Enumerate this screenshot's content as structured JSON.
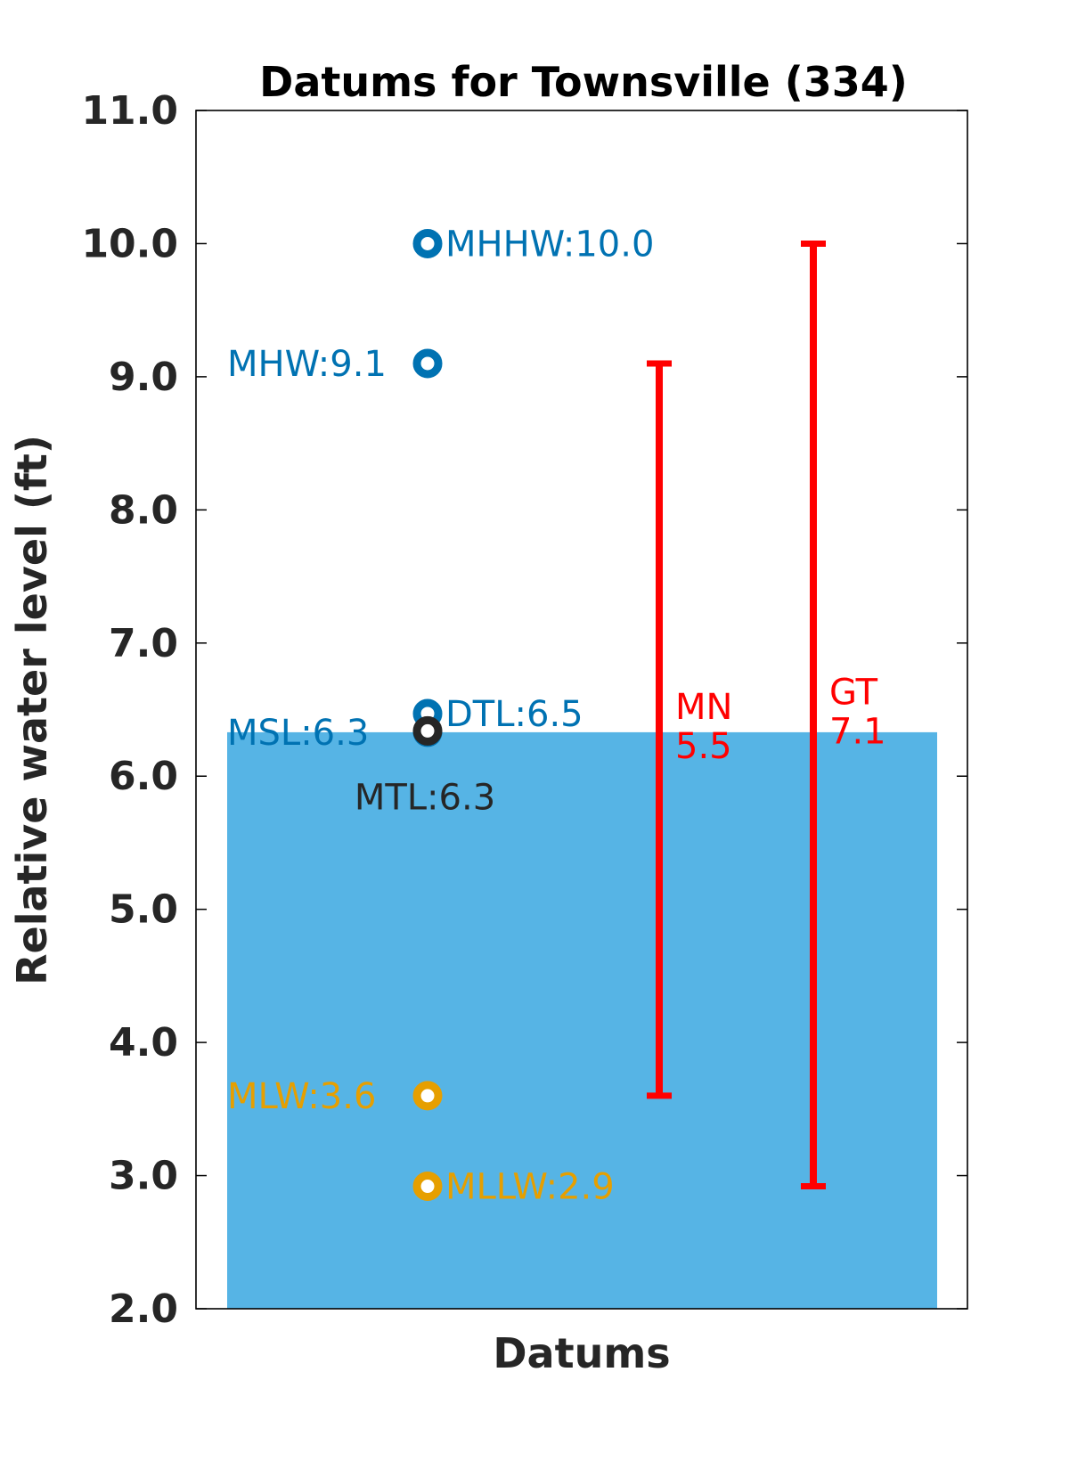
{
  "chart_data": {
    "type": "bar",
    "title": "Datums for Townsville (334)",
    "xlabel": "Datums",
    "ylabel": "Relative water level (ft)",
    "ylim": [
      2.0,
      11.0
    ],
    "yticks": [
      "2.0",
      "3.0",
      "4.0",
      "5.0",
      "6.0",
      "7.0",
      "8.0",
      "9.0",
      "10.0",
      "11.0"
    ],
    "grid": false,
    "bar": {
      "base": 2.0,
      "top": 6.33,
      "color": "#56b4e5"
    },
    "datums": [
      {
        "name": "MHHW",
        "value": 10.0,
        "label": "MHHW:10.0",
        "color": "#0072b2",
        "side": "right"
      },
      {
        "name": "MHW",
        "value": 9.1,
        "label": "MHW:9.1",
        "color": "#0072b2",
        "side": "left"
      },
      {
        "name": "DTL",
        "value": 6.47,
        "label": "DTL:6.5",
        "color": "#0072b2",
        "side": "right"
      },
      {
        "name": "MSL",
        "value": 6.33,
        "label": "MSL:6.3",
        "color": "#0072b2",
        "side": "left"
      },
      {
        "name": "MTL",
        "value": 6.34,
        "label": "MTL:6.3",
        "color": "#262626",
        "side": "below"
      },
      {
        "name": "MLW",
        "value": 3.6,
        "label": "MLW:3.6",
        "color": "#e69f00",
        "side": "left"
      },
      {
        "name": "MLLW",
        "value": 2.92,
        "label": "MLLW:2.9",
        "color": "#e69f00",
        "side": "right"
      }
    ],
    "ranges": [
      {
        "name": "MN",
        "low": 3.6,
        "high": 9.1,
        "label_line1": "MN",
        "label_line2": "5.5",
        "color": "#ff0000"
      },
      {
        "name": "GT",
        "low": 2.92,
        "high": 10.0,
        "label_line1": "GT",
        "label_line2": "7.1",
        "color": "#ff0000"
      }
    ]
  }
}
